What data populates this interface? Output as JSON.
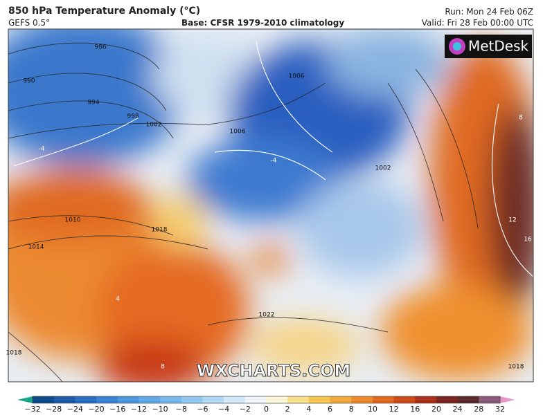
{
  "header": {
    "title": "850 hPa Temperature Anomaly (°C)",
    "model": "GEFS 0.5°",
    "base": "Base: CFSR 1979-2010 climatology",
    "run": "Run: Mon 24 Feb 06Z",
    "valid": "Valid: Fri 28 Feb 00:00 UTC"
  },
  "logo": "MetDesk",
  "watermark": "WXCHARTS.COM",
  "colorbar": {
    "ticks": [
      "−32",
      "−28",
      "−24",
      "−20",
      "−16",
      "−12",
      "−10",
      "−8",
      "−6",
      "−4",
      "−2",
      "0",
      "2",
      "4",
      "6",
      "8",
      "10",
      "12",
      "16",
      "20",
      "24",
      "28",
      "32"
    ]
  },
  "contour_labels": [
    "986",
    "990",
    "994",
    "998",
    "1002",
    "1006",
    "1006",
    "1002",
    "1010",
    "1014",
    "1018",
    "1022",
    "1018",
    "1018",
    "-4",
    "-4",
    "4",
    "8",
    "12",
    "16",
    "8"
  ]
}
